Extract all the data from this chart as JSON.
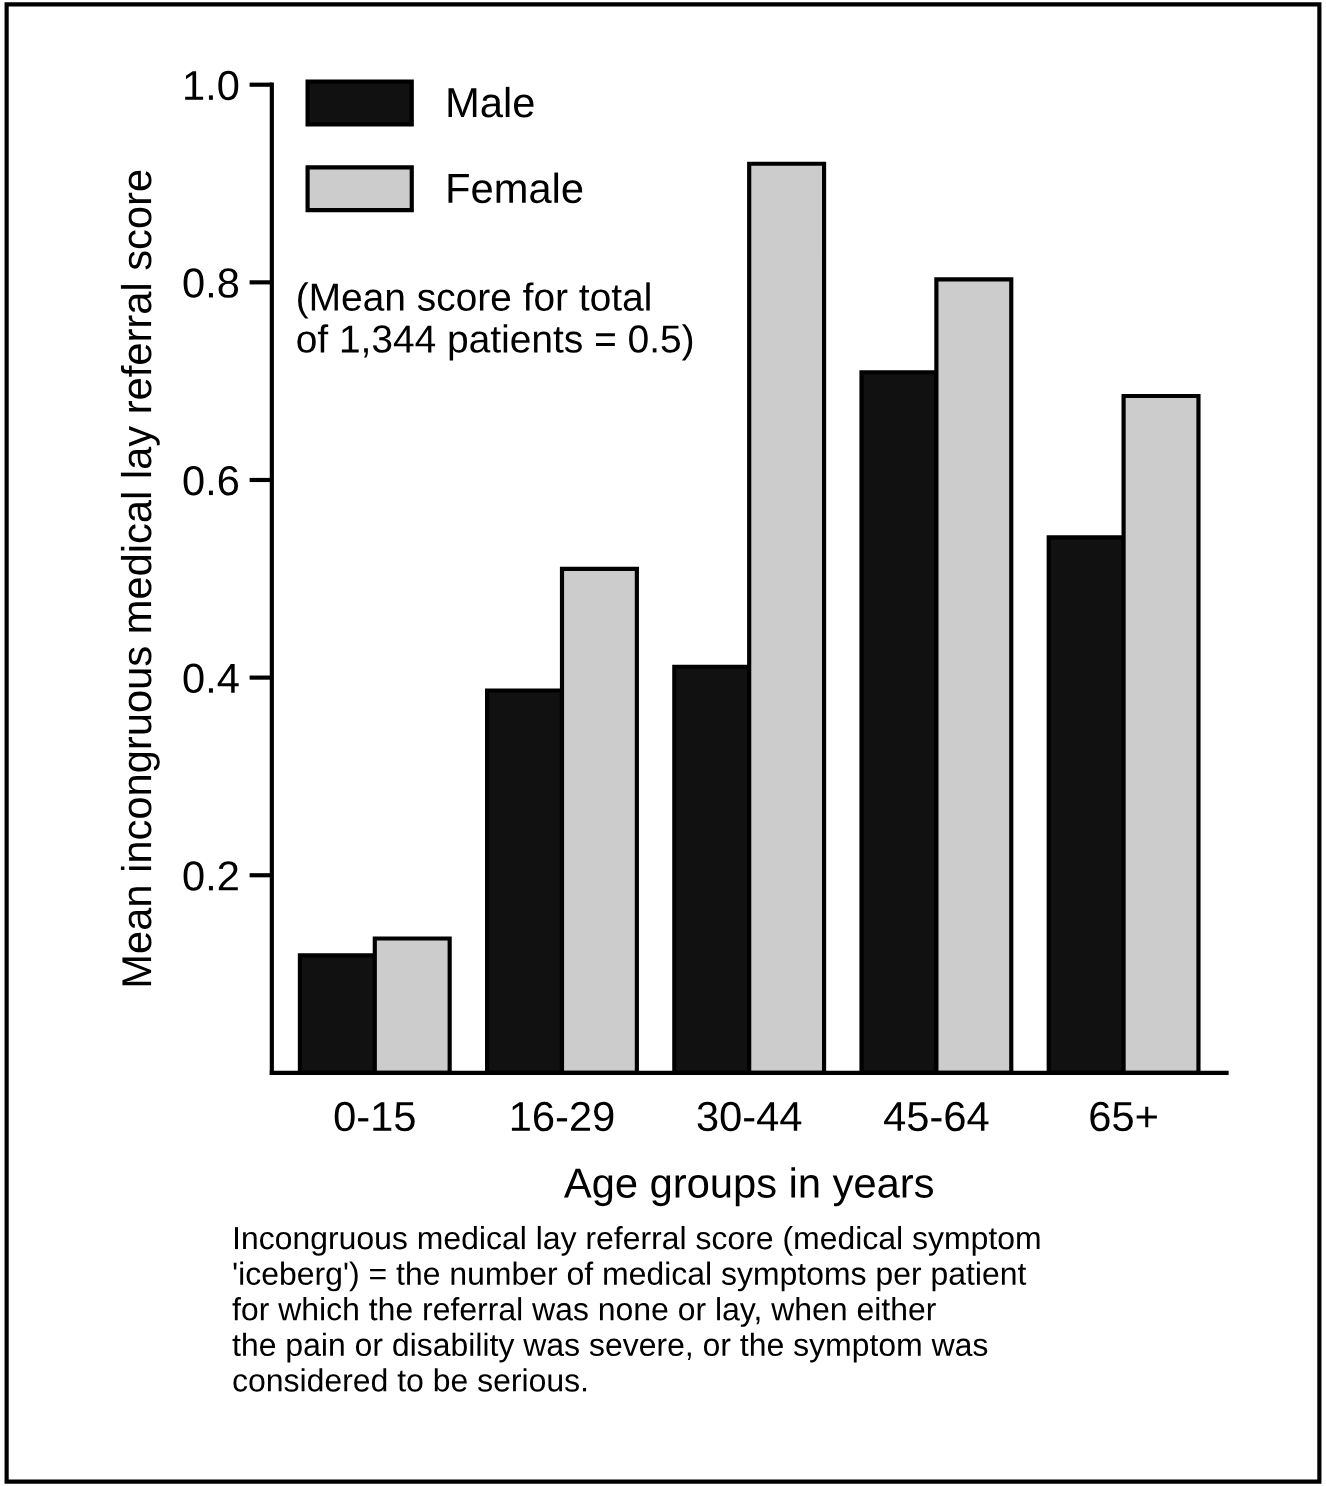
{
  "chart_data": {
    "type": "bar",
    "xlabel": "Age groups in years",
    "ylabel": "Mean incongruous medical lay referral score",
    "categories": [
      "0-15",
      "16-29",
      "30-44",
      "45-64",
      "65+"
    ],
    "series": [
      {
        "name": "Male",
        "color": "#111111",
        "values": [
          0.119,
          0.387,
          0.411,
          0.709,
          0.542
        ]
      },
      {
        "name": "Female",
        "color": "#cccccc",
        "values": [
          0.136,
          0.51,
          0.92,
          0.803,
          0.685
        ]
      }
    ],
    "ylim": [
      0,
      1.0
    ],
    "yticks": [
      {
        "value": 0.2,
        "label": "0.2"
      },
      {
        "value": 0.4,
        "label": "0.4"
      },
      {
        "value": 0.6,
        "label": "0.6"
      },
      {
        "value": 0.8,
        "label": "0.8"
      },
      {
        "value": 1.0,
        "label": "1.0"
      }
    ],
    "grid": false,
    "legend": "top left",
    "annotations": [
      "(Mean score for total\nof 1,344 patients = 0.5)",
      "Incongruous medical lay referral score (medical symptom\n'iceberg') = the number of medical symptoms per patient\nfor which the referral was none or lay, when either\nthe pain or disability was severe, or the symptom was\nconsidered to be serious."
    ]
  }
}
